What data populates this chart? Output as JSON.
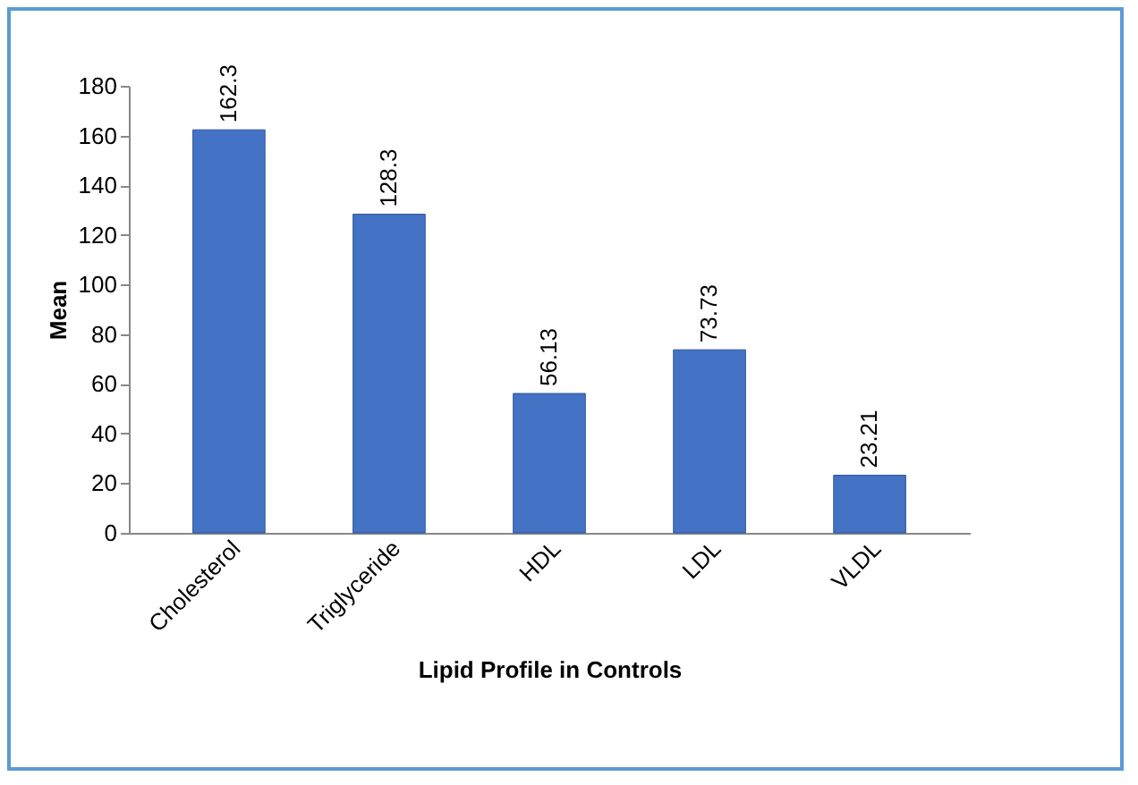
{
  "chart_data": {
    "type": "bar",
    "xlabel": "Lipid Profile in Controls",
    "ylabel": "Mean",
    "categories": [
      "Cholesterol",
      "Triglyceride",
      "HDL",
      "LDL",
      "VLDL"
    ],
    "values": [
      162.3,
      128.3,
      56.13,
      73.73,
      23.21
    ],
    "color": "#4472c4",
    "ylim": [
      0,
      180
    ],
    "yticks": [
      0,
      20,
      40,
      60,
      80,
      100,
      120,
      140,
      160,
      180
    ],
    "grid": false,
    "data_labels": true
  }
}
